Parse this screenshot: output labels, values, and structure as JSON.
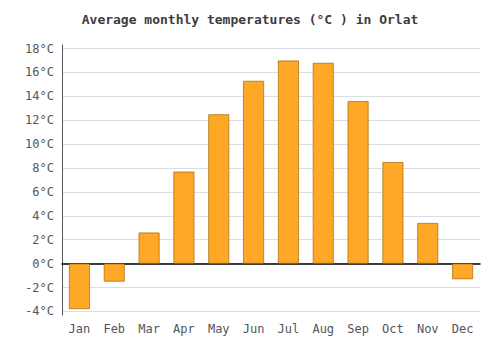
{
  "chart_data": {
    "type": "bar",
    "title": "Average monthly temperatures (°C ) in Orlat",
    "categories": [
      "Jan",
      "Feb",
      "Mar",
      "Apr",
      "May",
      "Jun",
      "Jul",
      "Aug",
      "Sep",
      "Oct",
      "Nov",
      "Dec"
    ],
    "values": [
      -3.8,
      -1.5,
      2.6,
      7.7,
      12.5,
      15.3,
      17.0,
      16.8,
      13.6,
      8.5,
      3.4,
      -1.3
    ],
    "color": "#FFA726",
    "ylim": [
      -4.3,
      18.3
    ],
    "yticks": [
      {
        "value": -4,
        "label": "-4°C"
      },
      {
        "value": -2,
        "label": "-2°C"
      },
      {
        "value": 0,
        "label": "0°C"
      },
      {
        "value": 2,
        "label": "2°C"
      },
      {
        "value": 4,
        "label": "4°C"
      },
      {
        "value": 6,
        "label": "6°C"
      },
      {
        "value": 8,
        "label": "8°C"
      },
      {
        "value": 10,
        "label": "10°C"
      },
      {
        "value": 12,
        "label": "12°C"
      },
      {
        "value": 14,
        "label": "14°C"
      },
      {
        "value": 16,
        "label": "16°C"
      },
      {
        "value": 18,
        "label": "18°C"
      }
    ],
    "grid": true
  }
}
